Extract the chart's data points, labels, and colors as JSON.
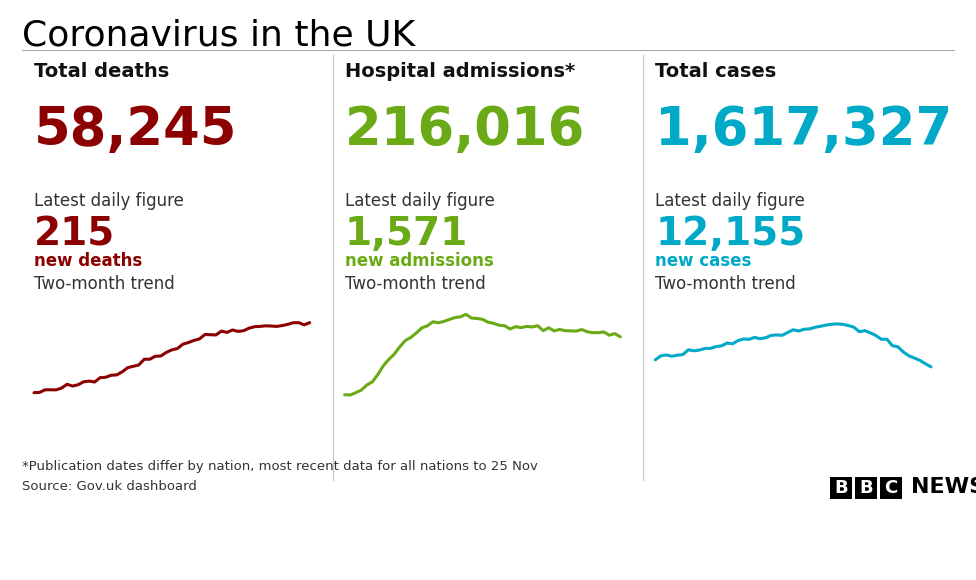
{
  "title": "Coronavirus in the UK",
  "background_color": "#ffffff",
  "title_color": "#000000",
  "title_fontsize": 26,
  "columns": [
    {
      "header": "Total deaths",
      "total": "58,245",
      "total_color": "#8b0000",
      "daily_label": "Latest daily figure",
      "daily_value": "215",
      "daily_color": "#8b0000",
      "daily_sub": "new deaths",
      "daily_sub_color": "#8b0000",
      "trend_label": "Two-month trend",
      "trend_color": "#8b0000",
      "trend_x": [
        0,
        1,
        2,
        3,
        4,
        5,
        6,
        7,
        8,
        9,
        10,
        11,
        12,
        13,
        14,
        15,
        16,
        17,
        18,
        19,
        20,
        21,
        22,
        23,
        24,
        25,
        26,
        27,
        28,
        29,
        30,
        31,
        32,
        33,
        34,
        35,
        36,
        37,
        38,
        39,
        40,
        41,
        42,
        43,
        44,
        45,
        46,
        47,
        48,
        49,
        50
      ],
      "trend_y": [
        0.02,
        0.03,
        0.05,
        0.04,
        0.06,
        0.08,
        0.1,
        0.09,
        0.12,
        0.14,
        0.16,
        0.15,
        0.19,
        0.22,
        0.24,
        0.23,
        0.27,
        0.3,
        0.33,
        0.35,
        0.38,
        0.4,
        0.43,
        0.45,
        0.48,
        0.5,
        0.53,
        0.56,
        0.59,
        0.61,
        0.63,
        0.65,
        0.67,
        0.68,
        0.7,
        0.71,
        0.72,
        0.73,
        0.73,
        0.74,
        0.75,
        0.76,
        0.77,
        0.77,
        0.78,
        0.78,
        0.79,
        0.79,
        0.8,
        0.8,
        0.8
      ]
    },
    {
      "header": "Hospital admissions*",
      "total": "216,016",
      "total_color": "#6aaa16",
      "daily_label": "Latest daily figure",
      "daily_value": "1,571",
      "daily_color": "#6aaa16",
      "daily_sub": "new admissions",
      "daily_sub_color": "#6aaa16",
      "trend_label": "Two-month trend",
      "trend_color": "#6aaa16",
      "trend_x": [
        0,
        1,
        2,
        3,
        4,
        5,
        6,
        7,
        8,
        9,
        10,
        11,
        12,
        13,
        14,
        15,
        16,
        17,
        18,
        19,
        20,
        21,
        22,
        23,
        24,
        25,
        26,
        27,
        28,
        29,
        30,
        31,
        32,
        33,
        34,
        35,
        36,
        37,
        38,
        39,
        40,
        41,
        42,
        43,
        44,
        45,
        46,
        47,
        48,
        49,
        50
      ],
      "trend_y": [
        0.0,
        0.01,
        0.03,
        0.06,
        0.1,
        0.15,
        0.22,
        0.3,
        0.38,
        0.46,
        0.54,
        0.6,
        0.66,
        0.7,
        0.74,
        0.77,
        0.79,
        0.81,
        0.83,
        0.85,
        0.86,
        0.87,
        0.87,
        0.86,
        0.85,
        0.83,
        0.81,
        0.79,
        0.77,
        0.76,
        0.75,
        0.75,
        0.75,
        0.76,
        0.76,
        0.75,
        0.74,
        0.73,
        0.72,
        0.71,
        0.7,
        0.7,
        0.7,
        0.7,
        0.71,
        0.7,
        0.7,
        0.69,
        0.68,
        0.67,
        0.65
      ]
    },
    {
      "header": "Total cases",
      "total": "1,617,327",
      "total_color": "#00a9c8",
      "daily_label": "Latest daily figure",
      "daily_value": "12,155",
      "daily_color": "#00a9c8",
      "daily_sub": "new cases",
      "daily_sub_color": "#00a9c8",
      "trend_label": "Two-month trend",
      "trend_color": "#00a9c8",
      "trend_x": [
        0,
        1,
        2,
        3,
        4,
        5,
        6,
        7,
        8,
        9,
        10,
        11,
        12,
        13,
        14,
        15,
        16,
        17,
        18,
        19,
        20,
        21,
        22,
        23,
        24,
        25,
        26,
        27,
        28,
        29,
        30,
        31,
        32,
        33,
        34,
        35,
        36,
        37,
        38,
        39,
        40,
        41,
        42,
        43,
        44,
        45,
        46,
        47,
        48,
        49,
        50
      ],
      "trend_y": [
        0.4,
        0.42,
        0.43,
        0.45,
        0.46,
        0.47,
        0.48,
        0.49,
        0.5,
        0.51,
        0.53,
        0.54,
        0.56,
        0.57,
        0.58,
        0.6,
        0.61,
        0.62,
        0.63,
        0.64,
        0.65,
        0.66,
        0.67,
        0.68,
        0.7,
        0.71,
        0.72,
        0.73,
        0.74,
        0.75,
        0.76,
        0.77,
        0.78,
        0.78,
        0.78,
        0.77,
        0.76,
        0.74,
        0.72,
        0.7,
        0.67,
        0.64,
        0.61,
        0.57,
        0.53,
        0.48,
        0.43,
        0.4,
        0.36,
        0.33,
        0.3
      ]
    }
  ],
  "footnote1": "*Publication dates differ by nation, most recent data for all nations to 25 Nov",
  "footnote2": "Source: Gov.uk dashboard",
  "divider_color": "#cccccc",
  "header_line_color": "#555555",
  "bbc_b_color": "#000000",
  "bbc_news_color": "#000000"
}
